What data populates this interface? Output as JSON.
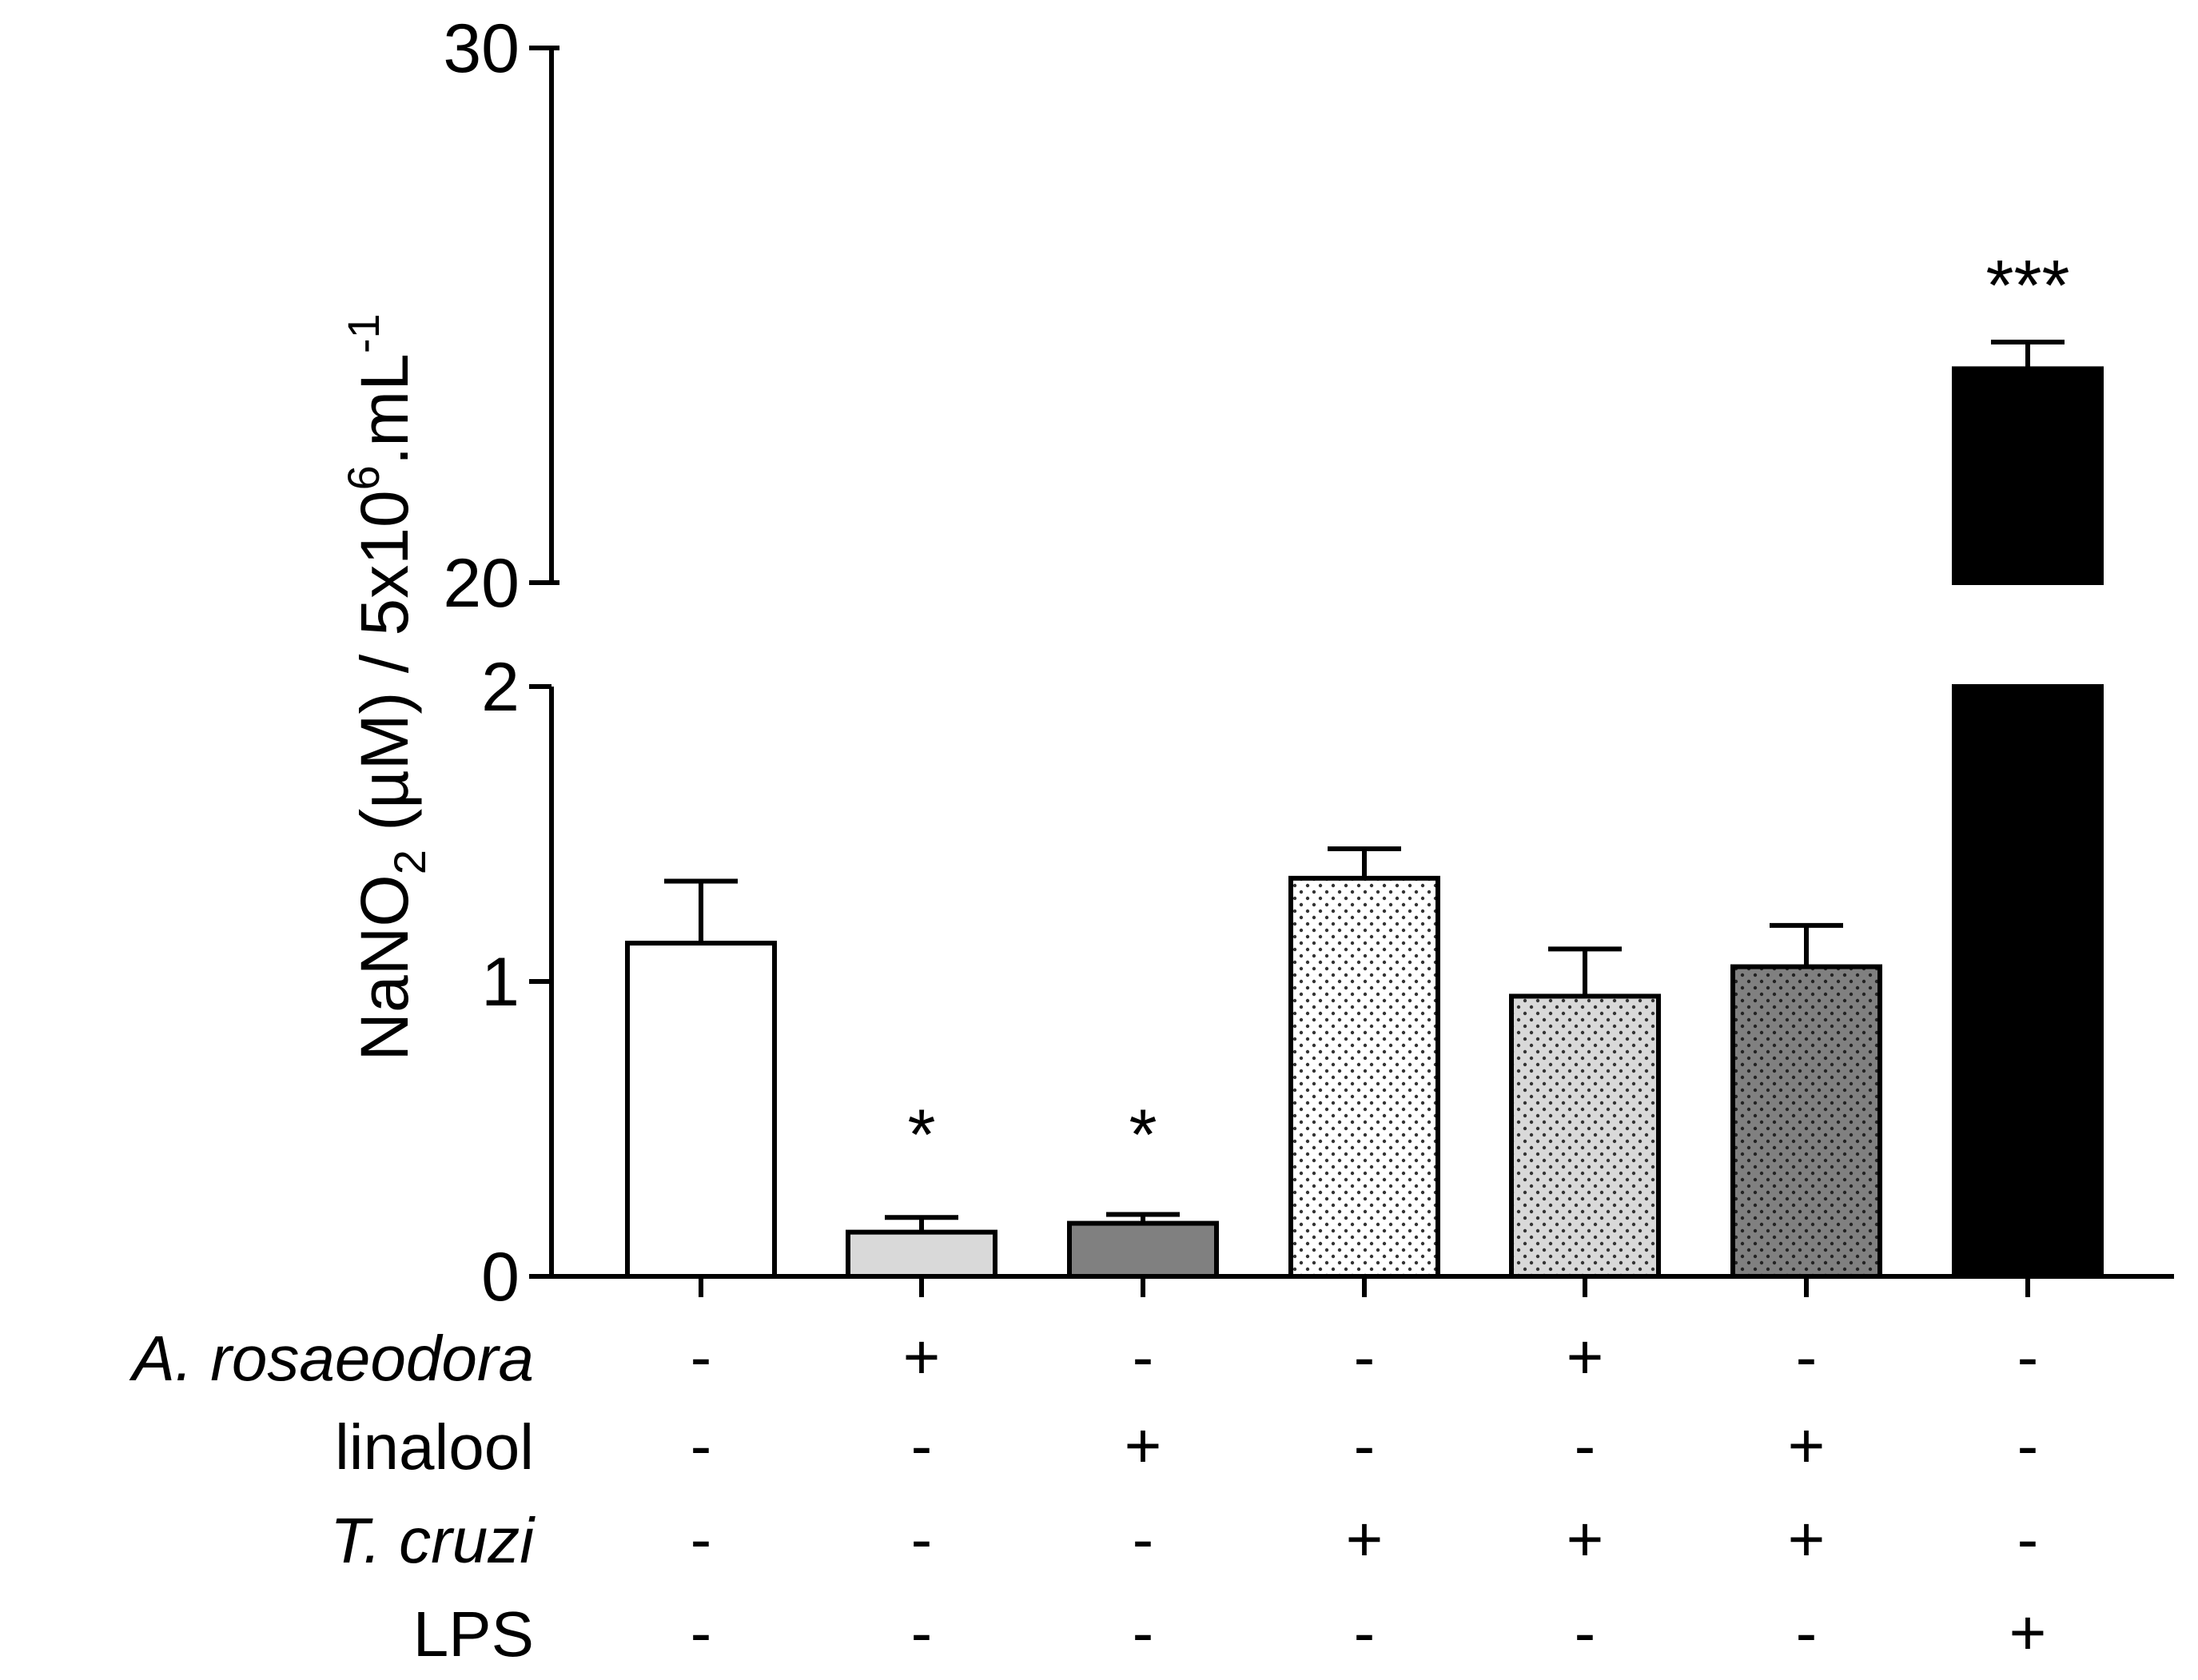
{
  "chart_data": {
    "type": "bar",
    "title": "",
    "xlabel": "",
    "ylabel": {
      "main": "NaNO",
      "sub": "2",
      "unit": " (µM) / 5x10",
      "exp6": "6",
      "mid": ".mL",
      "expNeg1": "-1"
    },
    "axis_break": true,
    "lower_segment": {
      "ylim": [
        0,
        2
      ],
      "ticks": [
        "0",
        "1",
        "2"
      ]
    },
    "upper_segment": {
      "ylim": [
        20,
        30
      ],
      "ticks": [
        "20",
        "30"
      ]
    },
    "colors": [
      "#ffffff",
      "#d9d9d9",
      "#808080",
      "#ffffff",
      "#d9d9d9",
      "#808080",
      "#000000"
    ],
    "patterns": [
      "none",
      "none",
      "none",
      "dots",
      "dots",
      "dots",
      "none"
    ],
    "bars": [
      {
        "mean": 1.13,
        "error": 0.21,
        "annotation": ""
      },
      {
        "mean": 0.15,
        "error": 0.05,
        "annotation": "*"
      },
      {
        "mean": 0.18,
        "error": 0.03,
        "annotation": "*"
      },
      {
        "mean": 1.35,
        "error": 0.1,
        "annotation": ""
      },
      {
        "mean": 0.95,
        "error": 0.16,
        "annotation": ""
      },
      {
        "mean": 1.05,
        "error": 0.14,
        "annotation": ""
      },
      {
        "mean": 24.0,
        "error": 0.5,
        "annotation": "***"
      }
    ],
    "treatment_rows": [
      {
        "label": "A. rosaeodora",
        "italic": true,
        "signs": [
          "-",
          "+",
          "-",
          "-",
          "+",
          "-",
          "-"
        ]
      },
      {
        "label": "linalool",
        "italic": false,
        "signs": [
          "-",
          "-",
          "+",
          "-",
          "-",
          "+",
          "-"
        ]
      },
      {
        "label": "T. cruzi",
        "italic": true,
        "signs": [
          "-",
          "-",
          "-",
          "+",
          "+",
          "+",
          "-"
        ]
      },
      {
        "label": "LPS",
        "italic": false,
        "signs": [
          "-",
          "-",
          "-",
          "-",
          "-",
          "-",
          "+"
        ]
      }
    ]
  }
}
